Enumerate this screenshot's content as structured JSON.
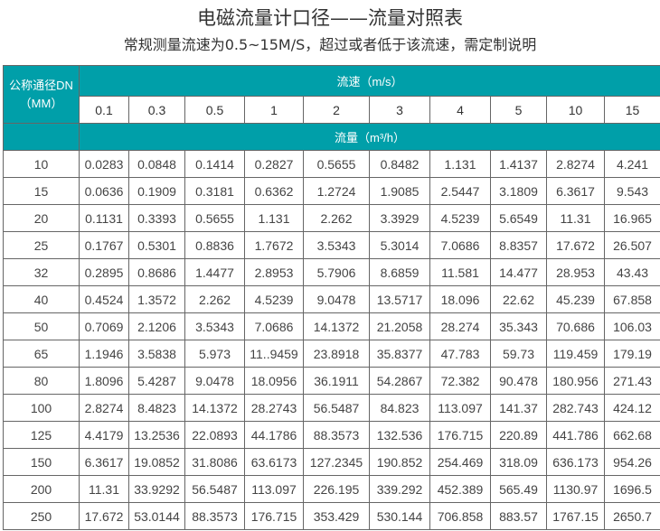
{
  "title": "电磁流量计口径——流量对照表",
  "subtitle": "常规测量流速为0.5~15M/S，超过或者低于该流速，需定制说明",
  "table": {
    "dn_header_line1": "公称通径DN",
    "dn_header_line2": "（MM）",
    "velocity_header": "流速（m/s）",
    "flow_header": "流量（m³/h）",
    "velocities": [
      "0.1",
      "0.3",
      "0.5",
      "1",
      "2",
      "3",
      "4",
      "5",
      "10",
      "15"
    ],
    "rows": [
      [
        "10",
        "0.0283",
        "0.0848",
        "0.1414",
        "0.2827",
        "0.5655",
        "0.8482",
        "1.131",
        "1.4137",
        "2.8274",
        "4.241"
      ],
      [
        "15",
        "0.0636",
        "0.1909",
        "0.3181",
        "0.6362",
        "1.2724",
        "1.9085",
        "2.5447",
        "3.1809",
        "6.3617",
        "9.543"
      ],
      [
        "20",
        "0.1131",
        "0.3393",
        "0.5655",
        "1.131",
        "2.262",
        "3.3929",
        "4.5239",
        "5.6549",
        "11.31",
        "16.965"
      ],
      [
        "25",
        "0.1767",
        "0.5301",
        "0.8836",
        "1.7672",
        "3.5343",
        "5.3014",
        "7.0686",
        "8.8357",
        "17.672",
        "26.507"
      ],
      [
        "32",
        "0.2895",
        "0.8686",
        "1.4477",
        "2.8953",
        "5.7906",
        "8.6859",
        "11.581",
        "14.477",
        "28.953",
        "43.43"
      ],
      [
        "40",
        "0.4524",
        "1.3572",
        "2.262",
        "4.5239",
        "9.0478",
        "13.5717",
        "18.096",
        "22.62",
        "45.239",
        "67.858"
      ],
      [
        "50",
        "0.7069",
        "2.1206",
        "3.5343",
        "7.0686",
        "14.1372",
        "21.2058",
        "28.274",
        "35.343",
        "70.686",
        "106.03"
      ],
      [
        "65",
        "1.1946",
        "3.5838",
        "5.973",
        "11..9459",
        "23.8918",
        "35.8377",
        "47.783",
        "59.73",
        "119.459",
        "179.19"
      ],
      [
        "80",
        "1.8096",
        "5.4287",
        "9.0478",
        "18.0956",
        "36.1911",
        "54.2867",
        "72.382",
        "90.478",
        "180.956",
        "271.43"
      ],
      [
        "100",
        "2.8274",
        "8.4823",
        "14.1372",
        "28.2743",
        "56.5487",
        "84.823",
        "113.097",
        "141.37",
        "282.743",
        "424.12"
      ],
      [
        "125",
        "4.4179",
        "13.2536",
        "22.0893",
        "44.1786",
        "88.3573",
        "132.536",
        "176.715",
        "220.89",
        "441.786",
        "662.68"
      ],
      [
        "150",
        "6.3617",
        "19.0852",
        "31.8086",
        "63.6173",
        "127.2345",
        "190.852",
        "254.469",
        "318.09",
        "636.173",
        "954.26"
      ],
      [
        "200",
        "11.31",
        "33.9292",
        "56.5487",
        "113.097",
        "226.195",
        "339.292",
        "452.389",
        "565.49",
        "1130.97",
        "1696.5"
      ],
      [
        "250",
        "17.672",
        "53.0144",
        "88.3573",
        "176.715",
        "353.429",
        "530.144",
        "706.858",
        "883.57",
        "1767.15",
        "2650.7"
      ]
    ]
  }
}
